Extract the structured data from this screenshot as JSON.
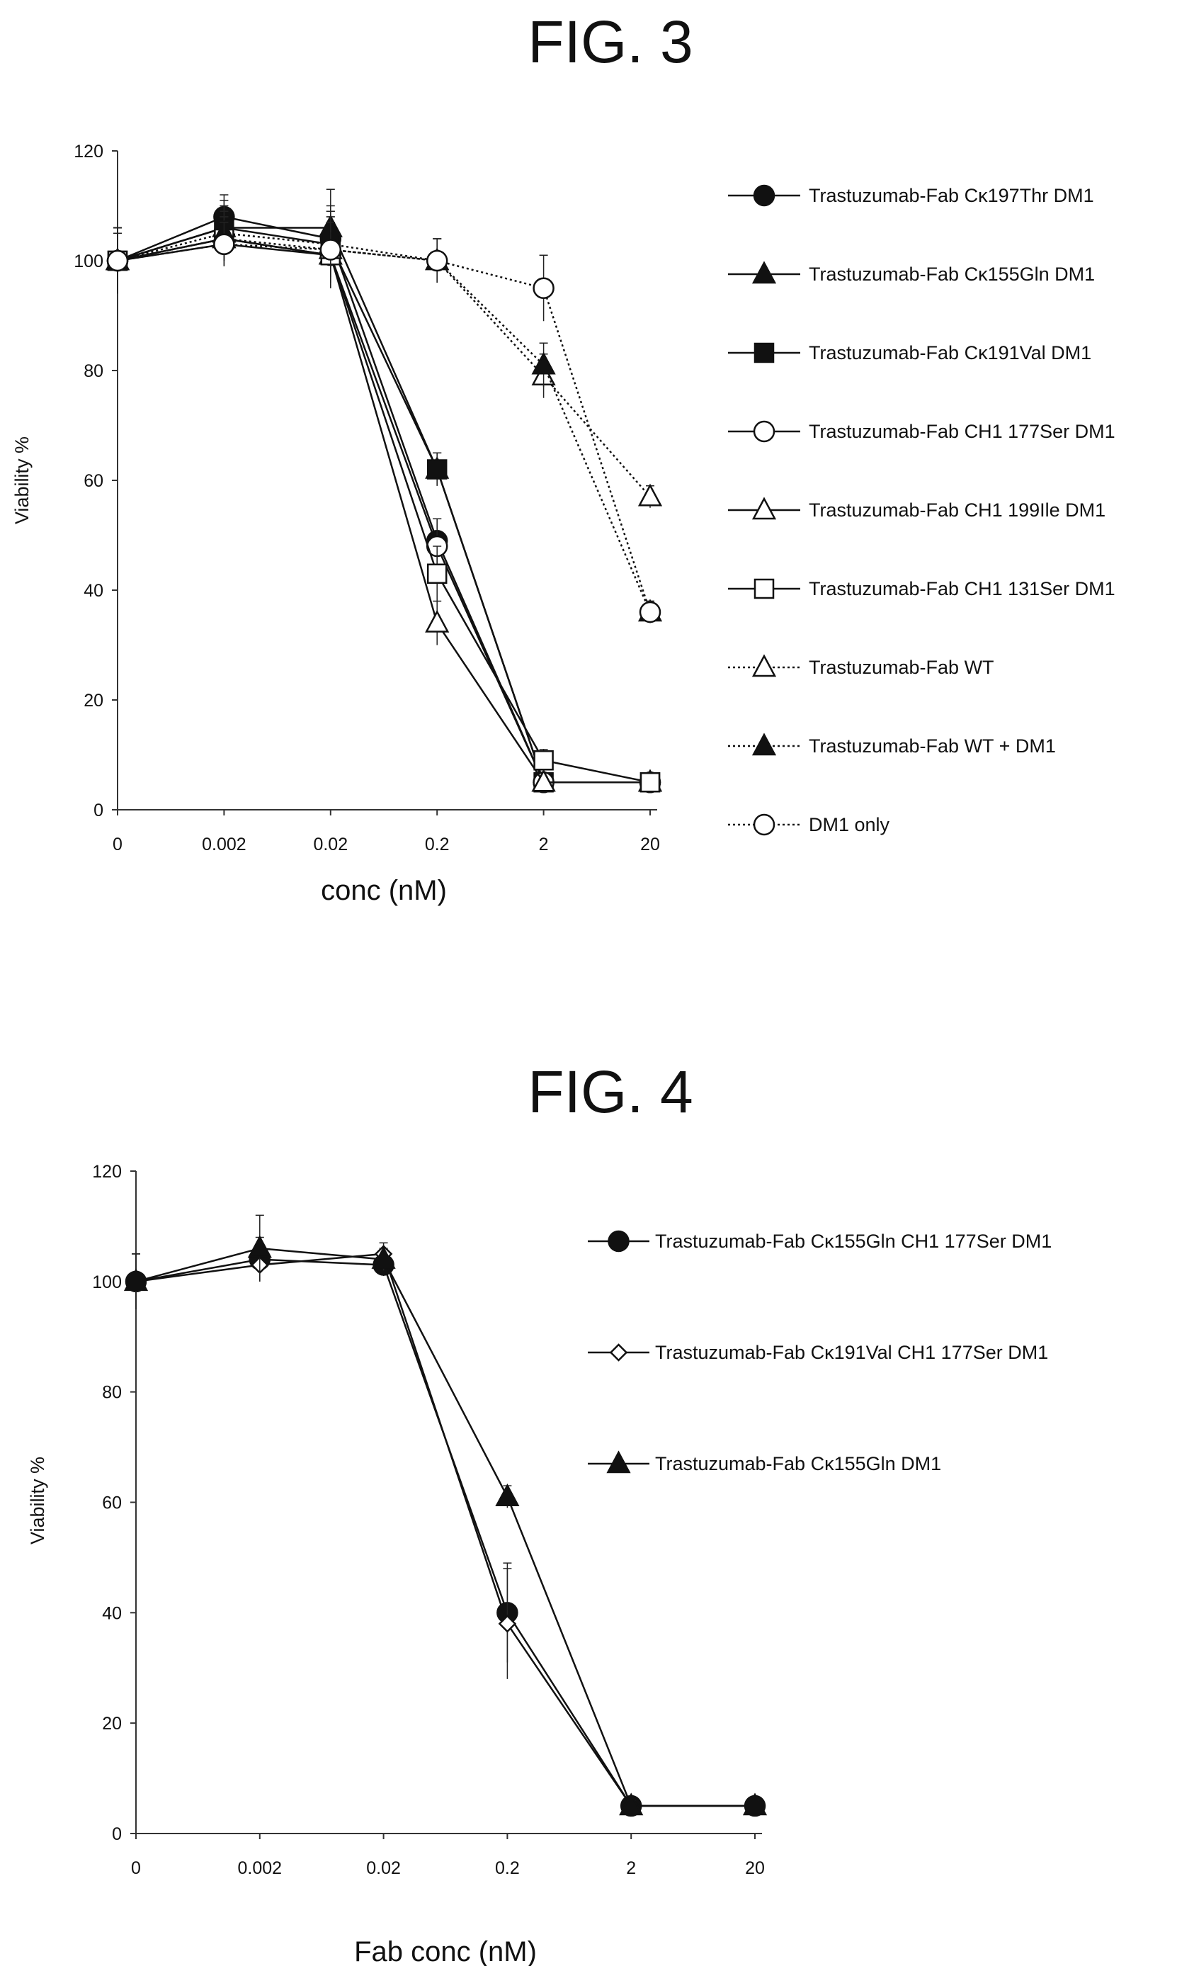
{
  "charts": [
    {
      "figure_label": "FIG. 3",
      "chart_data": {
        "type": "line",
        "categories": [
          "0",
          "0.002",
          "0.02",
          "0.2",
          "2",
          "20"
        ],
        "xlabel": "conc (nM)",
        "ylabel": "Viability %",
        "ylim": [
          0,
          120
        ],
        "yticks": [
          "0",
          "20",
          "40",
          "60",
          "80",
          "100",
          "120"
        ],
        "grid": false,
        "legend_position": "right",
        "series": [
          {
            "name": "Trastuzumab-Fab Cκ197Thr DM1",
            "marker": "circle",
            "filled": true,
            "dashed": false,
            "values": [
              100,
              108,
              104,
              49,
              5,
              5
            ],
            "err": [
              6,
              4,
              6,
              4,
              1,
              1
            ]
          },
          {
            "name": "Trastuzumab-Fab Cκ155Gln DM1",
            "marker": "triangle",
            "filled": true,
            "dashed": false,
            "values": [
              100,
              106,
              106,
              62,
              5,
              5
            ],
            "err": [
              6,
              5,
              7,
              3,
              1,
              1
            ]
          },
          {
            "name": "Trastuzumab-Fab Cκ191Val DM1",
            "marker": "square",
            "filled": true,
            "dashed": false,
            "values": [
              100,
              106,
              103,
              62,
              5,
              5
            ],
            "err": [
              5,
              4,
              6,
              3,
              1,
              1
            ]
          },
          {
            "name": "Trastuzumab-Fab CH1 177Ser DM1",
            "marker": "circle",
            "filled": false,
            "dashed": false,
            "values": [
              100,
              103,
              101,
              48,
              5,
              5
            ],
            "err": [
              6,
              4,
              6,
              5,
              1,
              1
            ]
          },
          {
            "name": "Trastuzumab-Fab CH1 199Ile DM1",
            "marker": "triangle",
            "filled": false,
            "dashed": false,
            "values": [
              100,
              104,
              101,
              34,
              5,
              5
            ],
            "err": [
              6,
              4,
              6,
              4,
              1,
              1
            ]
          },
          {
            "name": "Trastuzumab-Fab CH1 131Ser DM1",
            "marker": "square",
            "filled": false,
            "dashed": false,
            "values": [
              100,
              104,
              101,
              43,
              9,
              5
            ],
            "err": [
              6,
              4,
              6,
              5,
              2,
              1
            ]
          },
          {
            "name": "Trastuzumab-Fab WT",
            "marker": "triangle",
            "filled": false,
            "dashed": true,
            "values": [
              100,
              104,
              102,
              100,
              79,
              57
            ],
            "err": [
              6,
              4,
              6,
              4,
              4,
              2
            ]
          },
          {
            "name": "Trastuzumab-Fab WT + DM1",
            "marker": "triangle",
            "filled": true,
            "dashed": true,
            "values": [
              100,
              105,
              103,
              100,
              81,
              36
            ],
            "err": [
              6,
              4,
              6,
              4,
              4,
              2
            ]
          },
          {
            "name": "DM1 only",
            "marker": "circle",
            "filled": false,
            "dashed": true,
            "values": [
              100,
              103,
              102,
              100,
              95,
              36
            ],
            "err": [
              6,
              4,
              6,
              4,
              6,
              2
            ]
          }
        ]
      }
    },
    {
      "figure_label": "FIG. 4",
      "chart_data": {
        "type": "line",
        "categories": [
          "0",
          "0.002",
          "0.02",
          "0.2",
          "2",
          "20"
        ],
        "xlabel": "Fab conc (nM)",
        "ylabel": "Viability %",
        "ylim": [
          0,
          120
        ],
        "yticks": [
          "0",
          "20",
          "40",
          "60",
          "80",
          "100",
          "120"
        ],
        "grid": false,
        "legend_position": "right",
        "series": [
          {
            "name": "Trastuzumab-Fab Cκ155Gln CH1 177Ser DM1",
            "marker": "circle",
            "filled": true,
            "dashed": false,
            "values": [
              100,
              104,
              103,
              40,
              5,
              5
            ],
            "err": [
              5,
              4,
              2,
              9,
              1,
              1
            ]
          },
          {
            "name": "Trastuzumab-Fab Cκ191Val  CH1 177Ser DM1",
            "marker": "diamond",
            "filled": false,
            "dashed": false,
            "values": [
              100,
              103,
              105,
              38,
              5,
              5
            ],
            "err": [
              5,
              3,
              2,
              10,
              1,
              1
            ]
          },
          {
            "name": "Trastuzumab-Fab Cκ155Gln DM1",
            "marker": "triangle",
            "filled": true,
            "dashed": false,
            "values": [
              100,
              106,
              104,
              61,
              5,
              5
            ],
            "err": [
              5,
              6,
              2,
              2,
              1,
              1
            ]
          }
        ]
      }
    }
  ]
}
